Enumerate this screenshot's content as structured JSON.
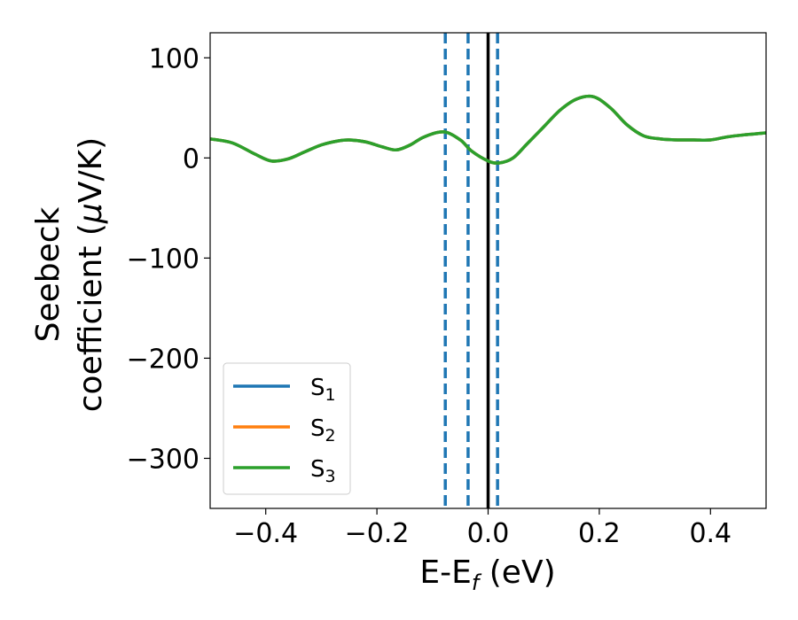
{
  "chart_data": {
    "type": "line",
    "xlabel": {
      "main": "E-E",
      "sub": "f",
      "tail": " (eV)"
    },
    "ylabel": {
      "line1": "Seebeck",
      "line2_prefix": "coefficient  (",
      "mu": "μ",
      "line2_suffix": "V/K)"
    },
    "xlim": [
      -0.5,
      0.5
    ],
    "ylim": [
      -350,
      125
    ],
    "xticks": [
      -0.4,
      -0.2,
      0.0,
      0.2,
      0.4
    ],
    "xtick_labels": [
      "−0.4",
      "−0.2",
      "0.0",
      "0.2",
      "0.4"
    ],
    "yticks": [
      100,
      0,
      -100,
      -200,
      -300
    ],
    "ytick_labels": [
      "100",
      "0",
      "−100",
      "−200",
      "−300"
    ],
    "grid": false,
    "legend_position": "lower-left",
    "x": [
      -0.5,
      -0.46,
      -0.42,
      -0.39,
      -0.36,
      -0.33,
      -0.3,
      -0.27,
      -0.25,
      -0.22,
      -0.19,
      -0.165,
      -0.14,
      -0.115,
      -0.08,
      -0.05,
      -0.03,
      0.0,
      0.02,
      0.045,
      0.07,
      0.1,
      0.13,
      0.16,
      0.19,
      0.22,
      0.25,
      0.28,
      0.31,
      0.34,
      0.37,
      0.4,
      0.43,
      0.46,
      0.5
    ],
    "series": [
      {
        "name": "S",
        "sub": "1",
        "color": "#1f77b4",
        "values": [
          19,
          15,
          4,
          -3,
          -1,
          6,
          13,
          17,
          18,
          16,
          11,
          8,
          13,
          21,
          26,
          18,
          7,
          -3,
          -5,
          0,
          14,
          31,
          48,
          59,
          61,
          50,
          33,
          22,
          19,
          18,
          18,
          18,
          21,
          23,
          25
        ]
      },
      {
        "name": "S",
        "sub": "2",
        "color": "#ff7f0e",
        "values": [
          19,
          15,
          4,
          -3,
          -1,
          6,
          13,
          17,
          18,
          16,
          11,
          8,
          13,
          21,
          26,
          18,
          7,
          -3,
          -5,
          0,
          14,
          31,
          48,
          59,
          61,
          50,
          33,
          22,
          19,
          18,
          18,
          18,
          21,
          23,
          25
        ]
      },
      {
        "name": "S",
        "sub": "3",
        "color": "#2ca02c",
        "values": [
          19,
          15,
          4,
          -3,
          -1,
          6,
          13,
          17,
          18,
          16,
          11,
          8,
          13,
          21,
          26,
          18,
          7,
          -3,
          -5,
          0,
          14,
          31,
          48,
          59,
          61,
          50,
          33,
          22,
          19,
          18,
          18,
          18,
          21,
          23,
          25
        ]
      }
    ],
    "vlines": [
      {
        "x": -0.077,
        "style": "dashed",
        "color": "#1f77b4"
      },
      {
        "x": -0.036,
        "style": "dashed",
        "color": "#1f77b4"
      },
      {
        "x": 0.0,
        "style": "solid",
        "color": "#000000"
      },
      {
        "x": 0.017,
        "style": "dashed",
        "color": "#1f77b4"
      }
    ]
  }
}
